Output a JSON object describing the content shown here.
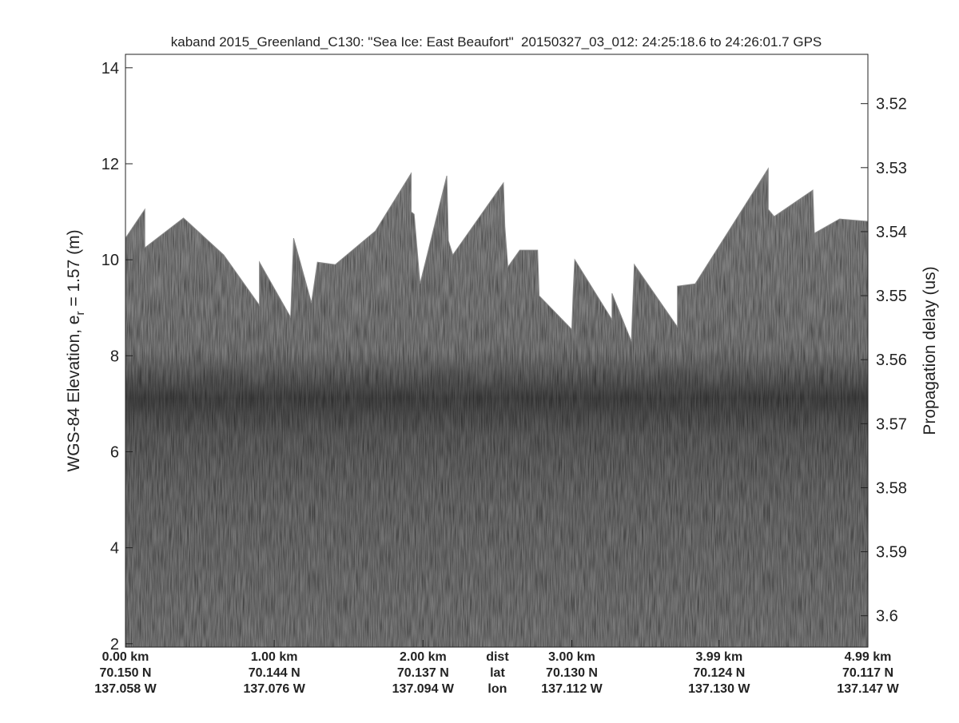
{
  "chart_data": {
    "type": "echogram",
    "title": "kaband 2015_Greenland_C130: \"Sea Ice: East Beaufort\"  20150327_03_012: 24:25:18.6 to 24:26:01.7 GPS",
    "ylabel": {
      "prefix": "WGS-84 Elevation, e",
      "subscript": "r",
      "suffix": " = 1.57 (m)"
    },
    "y2label": "Propagation delay (us)",
    "xlim": [
      0,
      4.99
    ],
    "ylim": [
      1.93,
      14.28
    ],
    "yticks": [
      2,
      4,
      6,
      8,
      10,
      12,
      14
    ],
    "y2lim": [
      3.5123,
      3.6049
    ],
    "y2_reversed": true,
    "y2ticks": [
      3.52,
      3.53,
      3.54,
      3.55,
      3.56,
      3.57,
      3.58,
      3.59,
      3.6
    ],
    "xticks": [
      {
        "value": 0,
        "label": "0.00 km"
      },
      {
        "value": 1.0,
        "label": "1.00 km"
      },
      {
        "value": 2.0,
        "label": "2.00 km"
      },
      {
        "value": 3.0,
        "label": "3.00 km"
      },
      {
        "value": 3.99,
        "label": "3.99 km"
      },
      {
        "value": 4.99,
        "label": "4.99 km"
      }
    ],
    "lat_labels": [
      "70.150 N",
      "70.144 N",
      "70.137 N",
      "70.130 N",
      "70.124 N",
      "70.117 N"
    ],
    "lon_labels": [
      "137.058 W",
      "137.076 W",
      "137.094 W",
      "137.112 W",
      "137.130 W",
      "137.147 W"
    ],
    "row_names": [
      "dist",
      "lat",
      "lon"
    ],
    "surface": {
      "color": "#8a8a8a",
      "x": [
        0.0,
        0.13,
        0.13,
        0.39,
        0.66,
        0.9,
        0.9,
        1.11,
        1.13,
        1.25,
        1.29,
        1.41,
        1.68,
        1.92,
        1.92,
        1.94,
        1.98,
        2.16,
        2.17,
        2.2,
        2.54,
        2.55,
        2.57,
        2.65,
        2.77,
        2.78,
        3.0,
        3.01,
        3.02,
        3.27,
        3.27,
        3.4,
        3.42,
        3.71,
        3.71,
        3.83,
        4.32,
        4.32,
        4.36,
        4.62,
        4.63,
        4.8,
        4.99
      ],
      "values": [
        10.45,
        11.05,
        10.25,
        10.87,
        10.1,
        9.05,
        9.95,
        8.8,
        10.45,
        9.1,
        9.95,
        9.9,
        10.6,
        11.8,
        11.0,
        10.95,
        9.5,
        11.75,
        10.4,
        10.1,
        11.6,
        10.7,
        9.85,
        10.2,
        10.2,
        9.25,
        8.55,
        9.4,
        10.0,
        8.75,
        9.3,
        8.3,
        9.9,
        8.6,
        9.45,
        9.5,
        11.9,
        11.05,
        10.9,
        11.45,
        10.55,
        10.85,
        10.8
      ]
    }
  }
}
